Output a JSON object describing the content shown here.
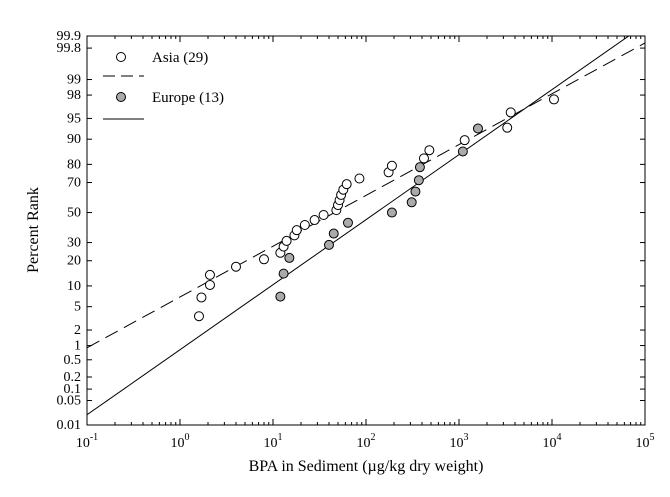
{
  "chart_data": {
    "type": "scatter",
    "title": "",
    "xlabel": "BPA in Sediment (µg/kg dry weight)",
    "ylabel": "Percent Rank",
    "x_scale": "log",
    "y_scale": "probability",
    "xlim": [
      0.1,
      100000
    ],
    "ylim": [
      0.01,
      99.9
    ],
    "x_ticks": [
      {
        "value": 0.1,
        "base": "10",
        "exp": "-1"
      },
      {
        "value": 1,
        "base": "10",
        "exp": "0"
      },
      {
        "value": 10,
        "base": "10",
        "exp": "1"
      },
      {
        "value": 100,
        "base": "10",
        "exp": "2"
      },
      {
        "value": 1000,
        "base": "10",
        "exp": "3"
      },
      {
        "value": 10000,
        "base": "10",
        "exp": "4"
      },
      {
        "value": 100000,
        "base": "10",
        "exp": "5"
      }
    ],
    "y_ticks": [
      {
        "value": 0.01,
        "label": "0.01"
      },
      {
        "value": 0.05,
        "label": "0.05"
      },
      {
        "value": 0.1,
        "label": "0.1"
      },
      {
        "value": 0.2,
        "label": "0.2"
      },
      {
        "value": 0.5,
        "label": "0.5"
      },
      {
        "value": 1,
        "label": "1"
      },
      {
        "value": 2,
        "label": "2"
      },
      {
        "value": 5,
        "label": "5"
      },
      {
        "value": 10,
        "label": "10"
      },
      {
        "value": 20,
        "label": "20"
      },
      {
        "value": 30,
        "label": "30"
      },
      {
        "value": 50,
        "label": "50"
      },
      {
        "value": 70,
        "label": "70"
      },
      {
        "value": 80,
        "label": "80"
      },
      {
        "value": 90,
        "label": "90"
      },
      {
        "value": 95,
        "label": "95"
      },
      {
        "value": 98,
        "label": "98"
      },
      {
        "value": 99,
        "label": "99"
      },
      {
        "value": 99.8,
        "label": "99.8"
      },
      {
        "value": 99.9,
        "label": "99.9"
      }
    ],
    "legend_position": "top-left",
    "series": [
      {
        "name": "Asia (29)",
        "marker": "open-circle",
        "fill": "#ffffff",
        "line_style": "dashed",
        "points": [
          {
            "x": 1.6,
            "y": 3.5
          },
          {
            "x": 1.7,
            "y": 6.9
          },
          {
            "x": 2.1,
            "y": 10.3
          },
          {
            "x": 2.1,
            "y": 13.8
          },
          {
            "x": 4.0,
            "y": 17.2
          },
          {
            "x": 8.0,
            "y": 20.7
          },
          {
            "x": 12,
            "y": 24.1
          },
          {
            "x": 13,
            "y": 27.6
          },
          {
            "x": 14,
            "y": 31.0
          },
          {
            "x": 17,
            "y": 34.5
          },
          {
            "x": 18,
            "y": 37.9
          },
          {
            "x": 22,
            "y": 41.4
          },
          {
            "x": 28,
            "y": 44.8
          },
          {
            "x": 35,
            "y": 48.3
          },
          {
            "x": 48,
            "y": 51.7
          },
          {
            "x": 50,
            "y": 55.2
          },
          {
            "x": 52,
            "y": 58.6
          },
          {
            "x": 54,
            "y": 62.1
          },
          {
            "x": 57,
            "y": 65.5
          },
          {
            "x": 62,
            "y": 69.0
          },
          {
            "x": 85,
            "y": 72.4
          },
          {
            "x": 175,
            "y": 75.9
          },
          {
            "x": 190,
            "y": 79.3
          },
          {
            "x": 420,
            "y": 82.8
          },
          {
            "x": 480,
            "y": 86.2
          },
          {
            "x": 1150,
            "y": 89.7
          },
          {
            "x": 3300,
            "y": 93.1
          },
          {
            "x": 3600,
            "y": 96.0
          },
          {
            "x": 10500,
            "y": 97.6
          }
        ],
        "fit_line": {
          "x": [
            0.1,
            100000
          ],
          "y": [
            0.9,
            99.85
          ]
        }
      },
      {
        "name": "Europe (13)",
        "marker": "filled-circle",
        "fill": "#aaaaaa",
        "line_style": "solid",
        "points": [
          {
            "x": 12,
            "y": 7.1
          },
          {
            "x": 13,
            "y": 14.3
          },
          {
            "x": 15,
            "y": 21.4
          },
          {
            "x": 40,
            "y": 28.6
          },
          {
            "x": 45,
            "y": 35.7
          },
          {
            "x": 64,
            "y": 42.9
          },
          {
            "x": 190,
            "y": 50.0
          },
          {
            "x": 310,
            "y": 57.1
          },
          {
            "x": 340,
            "y": 64.3
          },
          {
            "x": 370,
            "y": 71.4
          },
          {
            "x": 380,
            "y": 78.6
          },
          {
            "x": 1100,
            "y": 85.7
          },
          {
            "x": 1600,
            "y": 92.9
          }
        ],
        "fit_line": {
          "x": [
            0.1,
            100000
          ],
          "y": [
            0.02,
            99.95
          ]
        }
      }
    ],
    "colors": {
      "axis": "#000000",
      "marker_stroke": "#000000",
      "europe_fill": "#aaaaaa"
    }
  }
}
